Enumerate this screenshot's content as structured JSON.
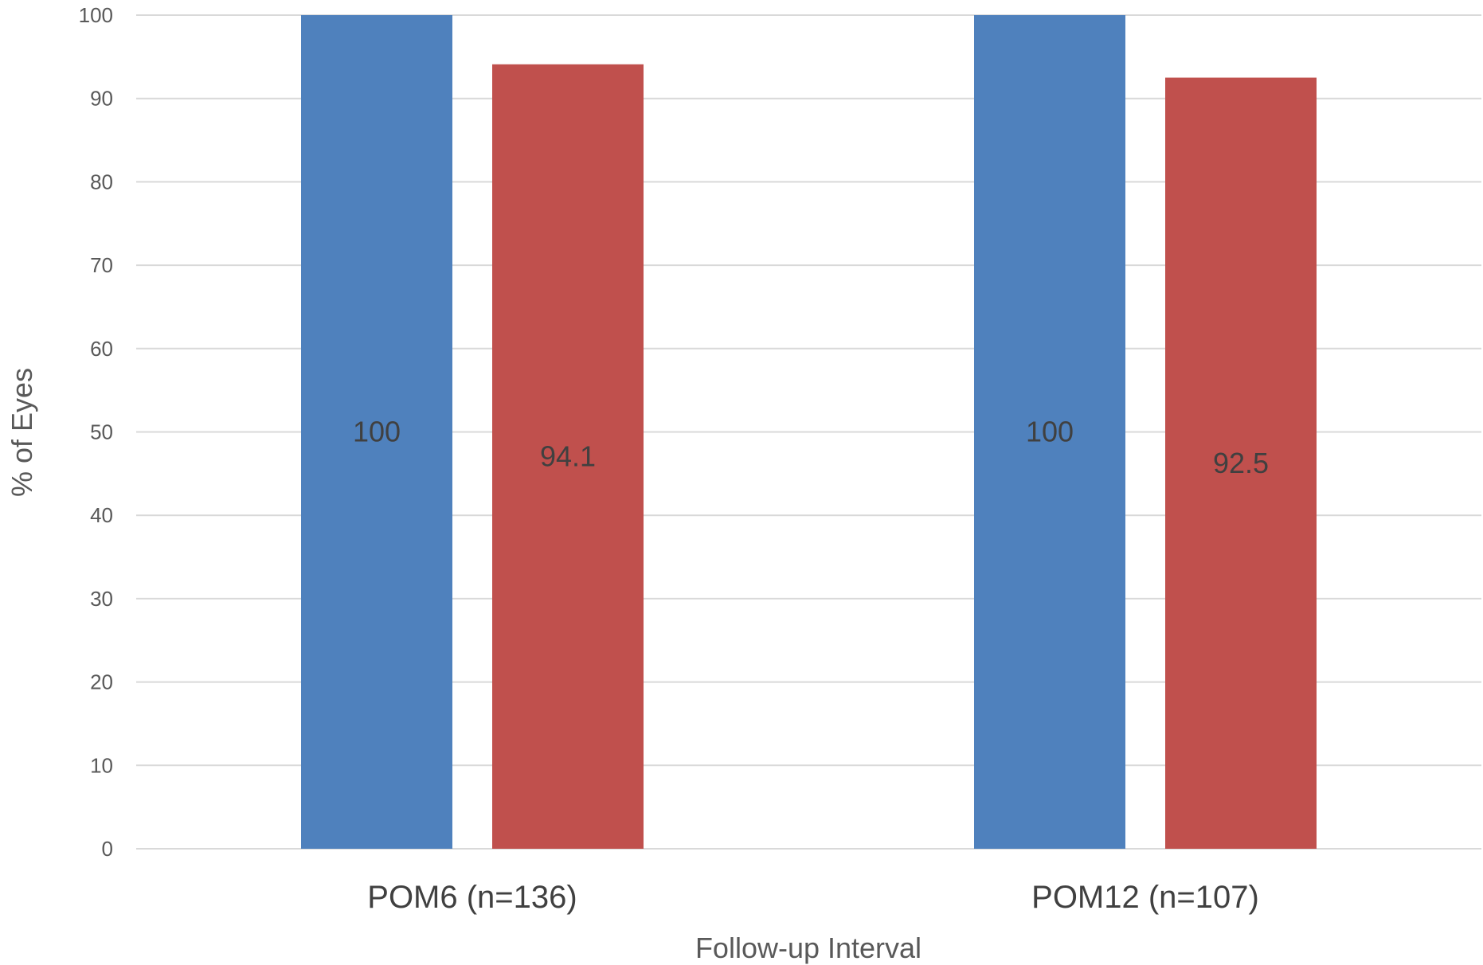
{
  "chart_data": {
    "type": "bar",
    "title": "",
    "xlabel": "Follow-up Interval",
    "ylabel": "% of Eyes",
    "categories": [
      "POM6 (n=136)",
      "POM12 (n=107)"
    ],
    "series": [
      {
        "values": [
          100,
          100
        ],
        "color": "#4F81BD"
      },
      {
        "values": [
          94.1,
          92.5
        ],
        "color": "#C0504D"
      }
    ],
    "ylim": [
      0,
      100
    ],
    "yticks": [
      0,
      10,
      20,
      30,
      40,
      50,
      60,
      70,
      80,
      90,
      100
    ],
    "grid": true,
    "legend": "none",
    "data_labels": true,
    "gridline_color": "#D9D9D9"
  }
}
